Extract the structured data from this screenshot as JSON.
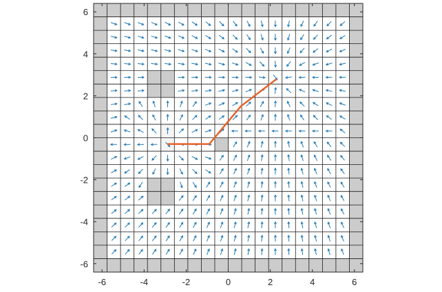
{
  "chart_data": {
    "type": "quiver",
    "xlim": [
      -6.4,
      6.4
    ],
    "ylim": [
      -6.4,
      6.4
    ],
    "x_ticks": [
      -6,
      -4,
      -2,
      0,
      2,
      4,
      6
    ],
    "y_ticks": [
      -6,
      -4,
      -2,
      0,
      2,
      4,
      6
    ],
    "x_tick_labels": [
      "-6",
      "-4",
      "-2",
      "0",
      "2",
      "4",
      "6"
    ],
    "y_tick_labels": [
      "-6",
      "-4",
      "-2",
      "0",
      "2",
      "4",
      "6"
    ],
    "grid": true,
    "grid_cell_size": 0.64,
    "grid_cells": 20,
    "cell_colors": {
      "free": "#ffffff",
      "obstacle": "#cccccc",
      "highlight": "#f5f5f5"
    },
    "obstacle_regions": [
      {
        "x": [
          -6.4,
          -5.76
        ],
        "y": [
          -6.4,
          6.4
        ]
      },
      {
        "x": [
          5.76,
          6.4
        ],
        "y": [
          -6.4,
          6.4
        ]
      },
      {
        "x": [
          -6.4,
          6.4
        ],
        "y": [
          5.76,
          6.4
        ]
      },
      {
        "x": [
          -6.4,
          6.4
        ],
        "y": [
          -6.4,
          -5.76
        ]
      },
      {
        "x": [
          -3.84,
          -2.56
        ],
        "y": [
          1.92,
          3.2
        ]
      },
      {
        "x": [
          -3.84,
          -2.56
        ],
        "y": [
          -3.2,
          -1.92
        ]
      },
      {
        "x": [
          -0.64,
          0.0
        ],
        "y": [
          -0.64,
          0.0
        ]
      }
    ],
    "highlight_regions": [
      {
        "x": [
          -3.2,
          -2.56
        ],
        "y": [
          -0.64,
          0.64
        ]
      }
    ],
    "vector_field": {
      "description_source": "arrows in each free cell",
      "attractor": [
        2.3,
        2.8
      ],
      "repulsor": [
        -2.9,
        -0.3
      ],
      "sink_row_y": 0.32,
      "color": "#1f77b4"
    },
    "path": {
      "color": "#e6632a",
      "x": [
        -2.9,
        -0.9,
        0.6,
        2.3
      ],
      "y": [
        -0.3,
        -0.3,
        1.5,
        2.8
      ]
    }
  }
}
